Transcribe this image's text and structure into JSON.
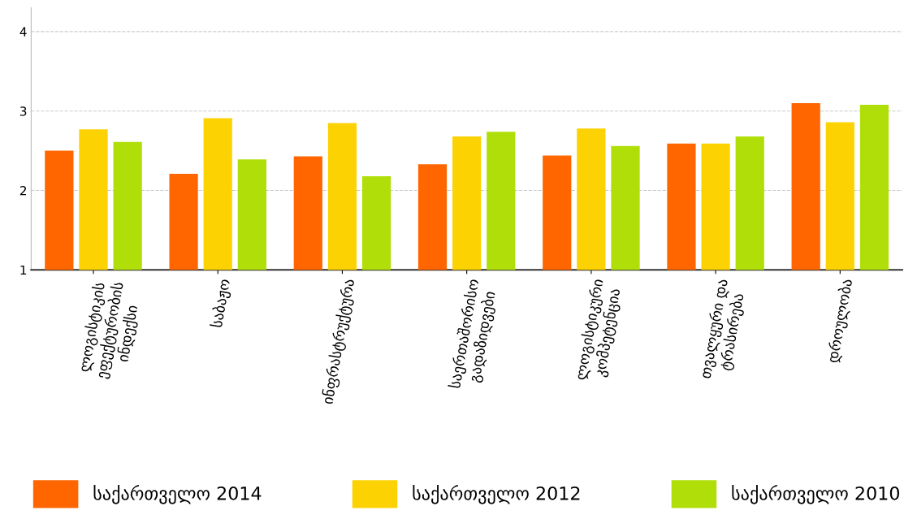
{
  "chart_data": {
    "type": "bar",
    "categories": [
      "ლოგისტიკის ეფექტურობის ინდექსი",
      "საბაჟო",
      "ინფრასტრუქტურა",
      "საერთაშორისო გადაზიდვები",
      "ლოგისტიკური კომპეტენცია",
      "თვალყური და ტრასირება",
      "დროულობა"
    ],
    "series": [
      {
        "name": "საქართველო 2014",
        "color": "#ff6600",
        "values": [
          2.5,
          2.21,
          2.43,
          2.33,
          2.44,
          2.59,
          3.1
        ]
      },
      {
        "name": "საქართველო 2012",
        "color": "#fcd202",
        "values": [
          2.77,
          2.91,
          2.85,
          2.68,
          2.78,
          2.59,
          2.86
        ]
      },
      {
        "name": "საქართველო 2010",
        "color": "#b0de09",
        "values": [
          2.61,
          2.39,
          2.18,
          2.74,
          2.56,
          2.68,
          3.08
        ]
      }
    ],
    "ylim": [
      1,
      4.3
    ],
    "yticks": [
      1,
      2,
      3,
      4
    ],
    "grid": "y",
    "legend": "bottom"
  }
}
